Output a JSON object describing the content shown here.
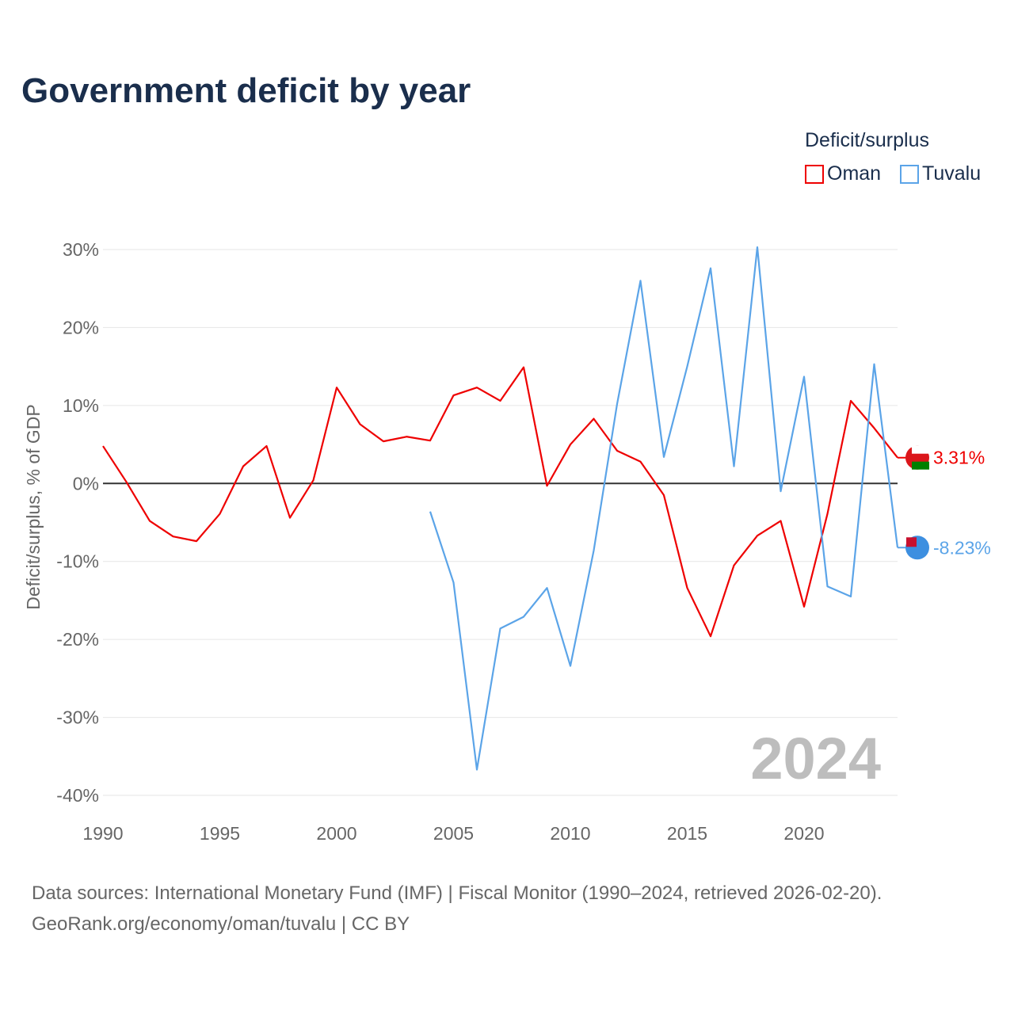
{
  "title": "Government deficit by year",
  "legend_title": "Deficit/surplus",
  "source_line1": "Data sources: International Monetary Fund (IMF) | Fiscal Monitor (1990–2024, retrieved 2026-02-20).",
  "source_line2": "GeoRank.org/economy/oman/tuvalu | CC BY",
  "chart_data": {
    "type": "line",
    "title": "Government deficit by year",
    "xlabel": "",
    "ylabel": "Deficit/surplus, % of GDP",
    "xlim": [
      1990,
      2024
    ],
    "ylim": [
      -40,
      30
    ],
    "x_ticks": [
      1990,
      1995,
      2000,
      2005,
      2010,
      2015,
      2020
    ],
    "x_tick_labels": [
      "1990",
      "1995",
      "2000",
      "2005",
      "2010",
      "2015",
      "2020"
    ],
    "y_ticks": [
      30,
      20,
      10,
      0,
      -10,
      -20,
      -30,
      -40
    ],
    "y_tick_labels": [
      "30%",
      "20%",
      "10%",
      "0%",
      "-10%",
      "-20%",
      "-30%",
      "-40%"
    ],
    "legend_placement": "top-right",
    "annotation": "2024",
    "series": [
      {
        "name": "Oman",
        "color": "#ee0000",
        "end_label": "3.31%",
        "x": [
          1990,
          1991,
          1992,
          1993,
          1994,
          1995,
          1996,
          1997,
          1998,
          1999,
          2000,
          2001,
          2002,
          2003,
          2004,
          2005,
          2006,
          2007,
          2008,
          2009,
          2010,
          2011,
          2012,
          2013,
          2014,
          2015,
          2016,
          2017,
          2018,
          2019,
          2020,
          2021,
          2022,
          2023,
          2024
        ],
        "values": [
          4.8,
          0.2,
          -4.8,
          -6.8,
          -7.4,
          -3.9,
          2.2,
          4.8,
          -4.4,
          0.4,
          12.3,
          7.6,
          5.4,
          6.0,
          5.5,
          11.3,
          12.3,
          10.6,
          14.9,
          -0.3,
          5.0,
          8.3,
          4.2,
          2.8,
          -1.5,
          -13.4,
          -19.6,
          -10.5,
          -6.7,
          -4.8,
          -15.8,
          -3.9,
          10.6,
          7.1,
          3.31
        ]
      },
      {
        "name": "Tuvalu",
        "color": "#5ba4e8",
        "end_label": "-8.23%",
        "x": [
          2004,
          2005,
          2006,
          2007,
          2008,
          2009,
          2010,
          2011,
          2012,
          2013,
          2014,
          2015,
          2016,
          2017,
          2018,
          2019,
          2020,
          2021,
          2022,
          2023,
          2024
        ],
        "values": [
          -3.6,
          -12.7,
          -36.7,
          -18.6,
          -17.1,
          -13.4,
          -23.4,
          -8.6,
          10.2,
          26.0,
          3.4,
          15.0,
          27.6,
          2.2,
          30.3,
          -1.0,
          13.7,
          -13.2,
          -14.5,
          15.3,
          -8.23
        ]
      }
    ]
  }
}
